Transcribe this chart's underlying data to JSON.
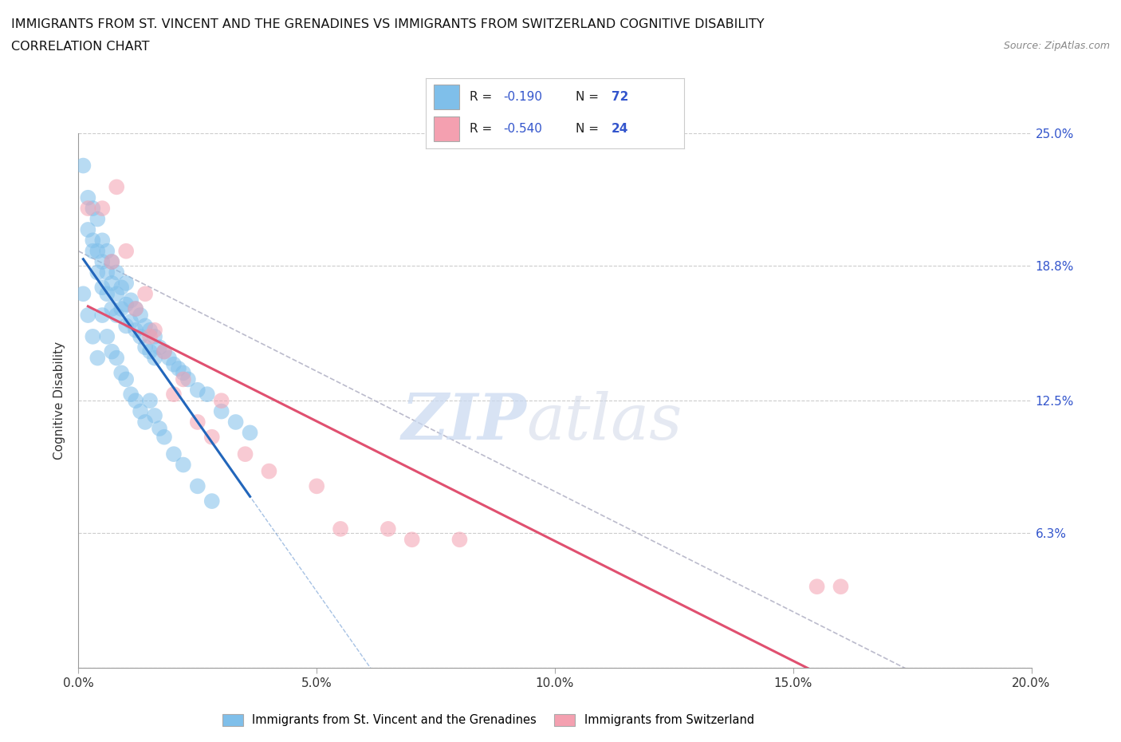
{
  "title_line1": "IMMIGRANTS FROM ST. VINCENT AND THE GRENADINES VS IMMIGRANTS FROM SWITZERLAND COGNITIVE DISABILITY",
  "title_line2": "CORRELATION CHART",
  "source": "Source: ZipAtlas.com",
  "ylabel": "Cognitive Disability",
  "x_min": 0.0,
  "x_max": 0.2,
  "y_min": 0.0,
  "y_max": 0.25,
  "x_ticks": [
    0.0,
    0.05,
    0.1,
    0.15,
    0.2
  ],
  "x_tick_labels": [
    "0.0%",
    "5.0%",
    "10.0%",
    "15.0%",
    "20.0%"
  ],
  "y_ticks": [
    0.0,
    0.063,
    0.125,
    0.188,
    0.25
  ],
  "y_tick_labels": [
    "",
    "6.3%",
    "12.5%",
    "18.8%",
    "25.0%"
  ],
  "color_blue": "#7fbfea",
  "color_pink": "#f4a0b0",
  "trend_blue": "#2266bb",
  "trend_pink": "#e05070",
  "trend_gray": "#bbbbcc",
  "r1": -0.19,
  "n1": 72,
  "r2": -0.54,
  "n2": 24,
  "blue_x": [
    0.001,
    0.002,
    0.002,
    0.003,
    0.003,
    0.003,
    0.004,
    0.004,
    0.004,
    0.005,
    0.005,
    0.005,
    0.006,
    0.006,
    0.006,
    0.007,
    0.007,
    0.007,
    0.008,
    0.008,
    0.008,
    0.009,
    0.009,
    0.01,
    0.01,
    0.01,
    0.011,
    0.011,
    0.012,
    0.012,
    0.013,
    0.013,
    0.014,
    0.014,
    0.015,
    0.015,
    0.016,
    0.016,
    0.017,
    0.018,
    0.019,
    0.02,
    0.021,
    0.022,
    0.023,
    0.025,
    0.027,
    0.03,
    0.033,
    0.036,
    0.001,
    0.002,
    0.003,
    0.004,
    0.005,
    0.006,
    0.007,
    0.008,
    0.009,
    0.01,
    0.011,
    0.012,
    0.013,
    0.014,
    0.015,
    0.016,
    0.017,
    0.018,
    0.02,
    0.022,
    0.025,
    0.028
  ],
  "blue_y": [
    0.235,
    0.22,
    0.205,
    0.215,
    0.2,
    0.195,
    0.21,
    0.195,
    0.185,
    0.2,
    0.19,
    0.178,
    0.195,
    0.185,
    0.175,
    0.19,
    0.18,
    0.168,
    0.185,
    0.175,
    0.165,
    0.178,
    0.168,
    0.18,
    0.17,
    0.16,
    0.172,
    0.162,
    0.168,
    0.158,
    0.165,
    0.155,
    0.16,
    0.15,
    0.158,
    0.148,
    0.155,
    0.145,
    0.15,
    0.148,
    0.145,
    0.142,
    0.14,
    0.138,
    0.135,
    0.13,
    0.128,
    0.12,
    0.115,
    0.11,
    0.175,
    0.165,
    0.155,
    0.145,
    0.165,
    0.155,
    0.148,
    0.145,
    0.138,
    0.135,
    0.128,
    0.125,
    0.12,
    0.115,
    0.125,
    0.118,
    0.112,
    0.108,
    0.1,
    0.095,
    0.085,
    0.078
  ],
  "pink_x": [
    0.002,
    0.005,
    0.007,
    0.008,
    0.01,
    0.012,
    0.014,
    0.015,
    0.016,
    0.018,
    0.02,
    0.022,
    0.025,
    0.028,
    0.03,
    0.035,
    0.04,
    0.05,
    0.055,
    0.065,
    0.07,
    0.08,
    0.155,
    0.16
  ],
  "pink_y": [
    0.215,
    0.215,
    0.19,
    0.225,
    0.195,
    0.168,
    0.175,
    0.155,
    0.158,
    0.148,
    0.128,
    0.135,
    0.115,
    0.108,
    0.125,
    0.1,
    0.092,
    0.085,
    0.065,
    0.065,
    0.06,
    0.06,
    0.038,
    0.038
  ],
  "watermark_zip": "ZIP",
  "watermark_atlas": "atlas",
  "title_fontsize": 11.5,
  "label_fontsize": 11,
  "tick_fontsize": 11
}
